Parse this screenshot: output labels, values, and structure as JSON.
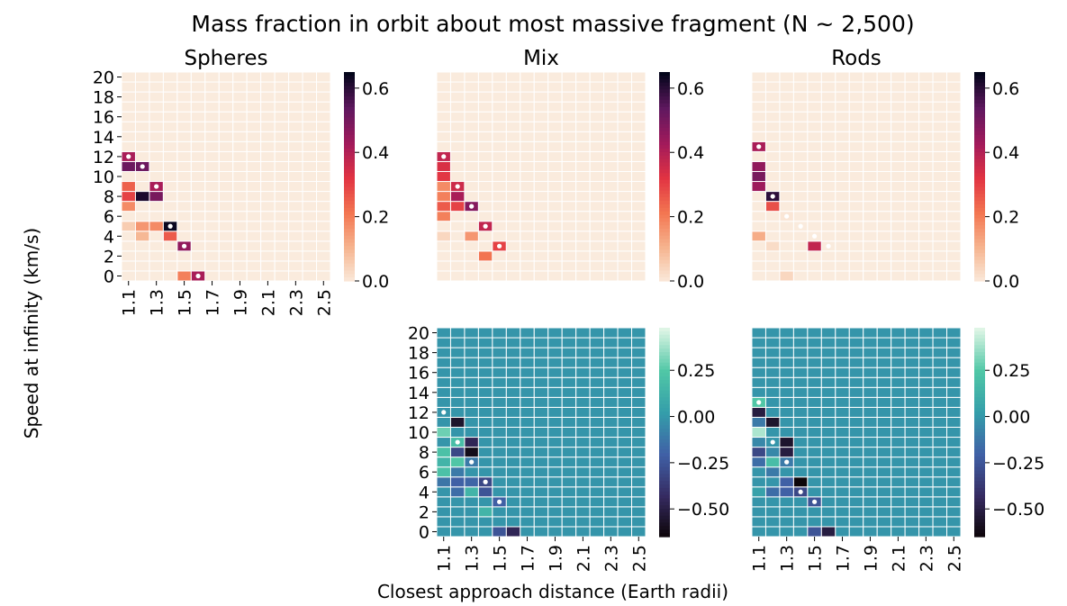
{
  "figure": {
    "suptitle": "Mass fraction in orbit about most massive fragment (N ~ 2,500)",
    "ylabel": "Speed at infinity (km/s)",
    "xlabel": "Closest approach distance (Earth radii)"
  },
  "chart_data": [
    {
      "id": "spheres",
      "type": "heatmap",
      "title": "Spheres",
      "colormap": "rocket_r",
      "x": [
        1.1,
        1.2,
        1.3,
        1.4,
        1.5,
        1.6,
        1.7,
        1.8,
        1.9,
        2.0,
        2.1,
        2.2,
        2.3,
        2.4,
        2.5
      ],
      "y": [
        0,
        1,
        2,
        3,
        4,
        5,
        6,
        7,
        8,
        9,
        10,
        11,
        12,
        13,
        14,
        15,
        16,
        17,
        18,
        19,
        20
      ],
      "xticklabels": [
        "1.1",
        "1.3",
        "1.5",
        "1.7",
        "1.9",
        "2.1",
        "2.3",
        "2.5"
      ],
      "yticklabels": [
        "0",
        "2",
        "4",
        "6",
        "8",
        "10",
        "12",
        "14",
        "16",
        "18",
        "20"
      ],
      "zlim": [
        0,
        0.65
      ],
      "colorbar_ticks": [
        "0.0",
        "0.2",
        "0.4",
        "0.6"
      ],
      "cells": [
        [
          1.1,
          12,
          0.42
        ],
        [
          1.1,
          11,
          0.52
        ],
        [
          1.2,
          11,
          0.52
        ],
        [
          1.1,
          9,
          0.25
        ],
        [
          1.3,
          9,
          0.42
        ],
        [
          1.1,
          8,
          0.3
        ],
        [
          1.2,
          8,
          0.62
        ],
        [
          1.3,
          8,
          0.5
        ],
        [
          1.1,
          7,
          0.18
        ],
        [
          1.1,
          5,
          0.06
        ],
        [
          1.2,
          5,
          0.16
        ],
        [
          1.3,
          5,
          0.18
        ],
        [
          1.4,
          5,
          0.64
        ],
        [
          1.2,
          4,
          0.1
        ],
        [
          1.4,
          4,
          0.26
        ],
        [
          1.5,
          3,
          0.46
        ],
        [
          1.5,
          0,
          0.2
        ],
        [
          1.6,
          0,
          0.42
        ]
      ],
      "markers": [
        [
          1.1,
          12
        ],
        [
          1.2,
          11
        ],
        [
          1.3,
          9
        ],
        [
          1.4,
          5
        ],
        [
          1.5,
          3
        ],
        [
          1.6,
          0
        ]
      ]
    },
    {
      "id": "mix",
      "type": "heatmap",
      "title": "Mix",
      "colormap": "rocket_r",
      "x": [
        1.1,
        1.2,
        1.3,
        1.4,
        1.5,
        1.6,
        1.7,
        1.8,
        1.9,
        2.0,
        2.1,
        2.2,
        2.3,
        2.4,
        2.5
      ],
      "y": [
        0,
        1,
        2,
        3,
        4,
        5,
        6,
        7,
        8,
        9,
        10,
        11,
        12,
        13,
        14,
        15,
        16,
        17,
        18,
        19,
        20
      ],
      "zlim": [
        0,
        0.65
      ],
      "colorbar_ticks": [
        "0.0",
        "0.2",
        "0.4",
        "0.6"
      ],
      "cells": [
        [
          1.1,
          12,
          0.38
        ],
        [
          1.1,
          11,
          0.34
        ],
        [
          1.1,
          10,
          0.32
        ],
        [
          1.1,
          9,
          0.18
        ],
        [
          1.2,
          9,
          0.36
        ],
        [
          1.1,
          8,
          0.2
        ],
        [
          1.2,
          8,
          0.42
        ],
        [
          1.1,
          7,
          0.26
        ],
        [
          1.2,
          7,
          0.3
        ],
        [
          1.3,
          7,
          0.48
        ],
        [
          1.1,
          6,
          0.2
        ],
        [
          1.4,
          5,
          0.38
        ],
        [
          1.1,
          4,
          0.04
        ],
        [
          1.3,
          4,
          0.16
        ],
        [
          1.5,
          3,
          0.3
        ],
        [
          1.4,
          2,
          0.22
        ]
      ],
      "markers": [
        [
          1.1,
          12
        ],
        [
          1.2,
          9
        ],
        [
          1.3,
          7
        ],
        [
          1.4,
          5
        ],
        [
          1.5,
          3
        ]
      ]
    },
    {
      "id": "rods",
      "type": "heatmap",
      "title": "Rods",
      "colormap": "rocket_r",
      "x": [
        1.1,
        1.2,
        1.3,
        1.4,
        1.5,
        1.6,
        1.7,
        1.8,
        1.9,
        2.0,
        2.1,
        2.2,
        2.3,
        2.4,
        2.5
      ],
      "y": [
        0,
        1,
        2,
        3,
        4,
        5,
        6,
        7,
        8,
        9,
        10,
        11,
        12,
        13,
        14,
        15,
        16,
        17,
        18,
        19,
        20
      ],
      "zlim": [
        0,
        0.65
      ],
      "colorbar_ticks": [
        "0.0",
        "0.2",
        "0.4",
        "0.6"
      ],
      "cells": [
        [
          1.1,
          13,
          0.42
        ],
        [
          1.1,
          11,
          0.46
        ],
        [
          1.1,
          10,
          0.5
        ],
        [
          1.1,
          9,
          0.44
        ],
        [
          1.2,
          8,
          0.6
        ],
        [
          1.2,
          7,
          0.28
        ],
        [
          1.3,
          6,
          0.01
        ],
        [
          1.1,
          4,
          0.12
        ],
        [
          1.2,
          3,
          0.03
        ],
        [
          1.5,
          3,
          0.38
        ],
        [
          1.3,
          0,
          0.04
        ]
      ],
      "markers": [
        [
          1.1,
          13
        ],
        [
          1.2,
          8
        ],
        [
          1.3,
          6
        ],
        [
          1.4,
          5
        ],
        [
          1.5,
          4
        ],
        [
          1.6,
          3
        ]
      ]
    },
    {
      "id": "mix-diff",
      "type": "heatmap",
      "title": "",
      "colormap": "mako",
      "x": [
        1.1,
        1.2,
        1.3,
        1.4,
        1.5,
        1.6,
        1.7,
        1.8,
        1.9,
        2.0,
        2.1,
        2.2,
        2.3,
        2.4,
        2.5
      ],
      "y": [
        0,
        1,
        2,
        3,
        4,
        5,
        6,
        7,
        8,
        9,
        10,
        11,
        12,
        13,
        14,
        15,
        16,
        17,
        18,
        19,
        20
      ],
      "xticklabels": [
        "1.1",
        "1.3",
        "1.5",
        "1.7",
        "1.9",
        "2.1",
        "2.3",
        "2.5"
      ],
      "yticklabels": [
        "0",
        "2",
        "4",
        "6",
        "8",
        "10",
        "12",
        "14",
        "16",
        "18",
        "20"
      ],
      "zlim": [
        -0.65,
        0.48
      ],
      "colorbar_ticks": [
        "0.25",
        "0.00",
        "−0.25",
        "−0.50"
      ],
      "cells": [
        [
          1.2,
          11,
          -0.55
        ],
        [
          1.1,
          10,
          0.3
        ],
        [
          1.2,
          9,
          0.2
        ],
        [
          1.3,
          9,
          -0.45
        ],
        [
          1.1,
          8,
          0.22
        ],
        [
          1.2,
          8,
          -0.3
        ],
        [
          1.3,
          8,
          -0.6
        ],
        [
          1.1,
          7,
          0.15
        ],
        [
          1.2,
          7,
          0.25
        ],
        [
          1.3,
          7,
          -0.1
        ],
        [
          1.1,
          6,
          0.22
        ],
        [
          1.2,
          6,
          -0.1
        ],
        [
          1.1,
          5,
          -0.12
        ],
        [
          1.2,
          5,
          -0.2
        ],
        [
          1.3,
          5,
          -0.18
        ],
        [
          1.4,
          5,
          -0.3
        ],
        [
          1.2,
          4,
          -0.15
        ],
        [
          1.3,
          4,
          0.15
        ],
        [
          1.4,
          4,
          -0.25
        ],
        [
          1.5,
          3,
          -0.2
        ],
        [
          1.4,
          2,
          0.15
        ],
        [
          1.5,
          0,
          -0.25
        ],
        [
          1.6,
          0,
          -0.45
        ]
      ],
      "markers": [
        [
          1.1,
          12
        ],
        [
          1.2,
          9
        ],
        [
          1.3,
          7
        ],
        [
          1.4,
          5
        ],
        [
          1.5,
          3
        ]
      ]
    },
    {
      "id": "rods-diff",
      "type": "heatmap",
      "title": "",
      "colormap": "mako",
      "x": [
        1.1,
        1.2,
        1.3,
        1.4,
        1.5,
        1.6,
        1.7,
        1.8,
        1.9,
        2.0,
        2.1,
        2.2,
        2.3,
        2.4,
        2.5
      ],
      "y": [
        0,
        1,
        2,
        3,
        4,
        5,
        6,
        7,
        8,
        9,
        10,
        11,
        12,
        13,
        14,
        15,
        16,
        17,
        18,
        19,
        20
      ],
      "xticklabels": [
        "1.1",
        "1.3",
        "1.5",
        "1.7",
        "1.9",
        "2.1",
        "2.3",
        "2.5"
      ],
      "zlim": [
        -0.65,
        0.48
      ],
      "colorbar_ticks": [
        "0.25",
        "0.00",
        "−0.25",
        "−0.50"
      ],
      "cells": [
        [
          1.1,
          13,
          0.25
        ],
        [
          1.1,
          12,
          -0.5
        ],
        [
          1.1,
          11,
          -0.1
        ],
        [
          1.2,
          11,
          -0.55
        ],
        [
          1.1,
          10,
          0.4
        ],
        [
          1.1,
          9,
          -0.05
        ],
        [
          1.3,
          9,
          -0.55
        ],
        [
          1.1,
          8,
          -0.3
        ],
        [
          1.2,
          8,
          -0.05
        ],
        [
          1.3,
          8,
          -0.5
        ],
        [
          1.1,
          7,
          -0.15
        ],
        [
          1.2,
          7,
          0.2
        ],
        [
          1.3,
          7,
          -0.1
        ],
        [
          1.2,
          6,
          -0.1
        ],
        [
          1.3,
          5,
          -0.2
        ],
        [
          1.4,
          5,
          -0.64
        ],
        [
          1.1,
          4,
          0.05
        ],
        [
          1.2,
          4,
          -0.15
        ],
        [
          1.3,
          4,
          -0.2
        ],
        [
          1.4,
          4,
          -0.3
        ],
        [
          1.5,
          3,
          -0.25
        ],
        [
          1.5,
          0,
          -0.25
        ],
        [
          1.6,
          0,
          -0.5
        ]
      ],
      "markers": [
        [
          1.1,
          13
        ],
        [
          1.2,
          9
        ],
        [
          1.3,
          7
        ],
        [
          1.4,
          4
        ],
        [
          1.5,
          3
        ]
      ]
    }
  ]
}
